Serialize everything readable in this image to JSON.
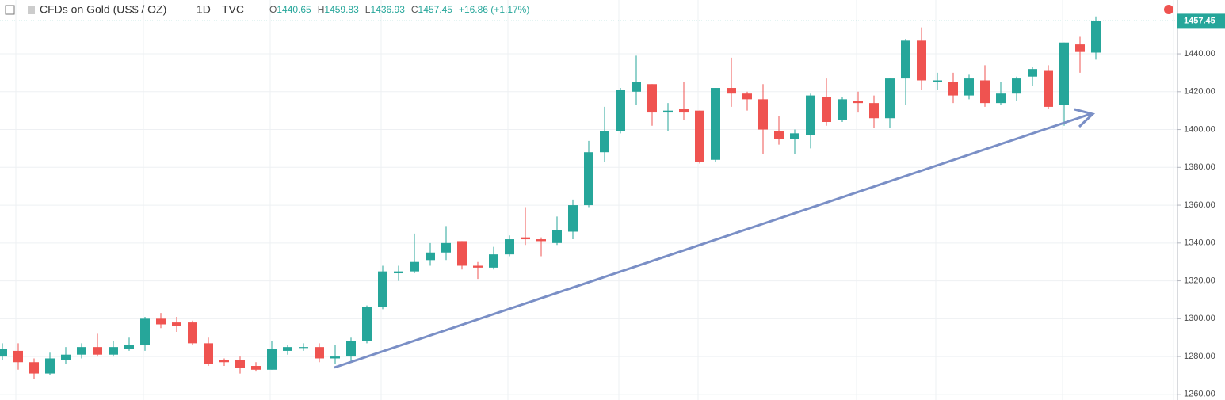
{
  "header": {
    "symbol": "CFDs on Gold (US$ / OZ)",
    "interval": "1D",
    "source": "TVC",
    "open_label": "O",
    "high_label": "H",
    "low_label": "L",
    "close_label": "C",
    "change": "+16.86 (+1.17%)"
  },
  "chart_data": {
    "type": "candlestick",
    "categories": [
      null,
      null,
      null,
      null,
      null,
      null,
      null,
      null,
      null,
      null,
      null,
      null,
      null,
      null,
      null,
      null,
      null,
      null,
      null,
      null,
      null,
      null,
      null,
      null,
      null,
      null,
      null,
      null,
      null,
      null,
      null,
      null,
      null,
      null,
      null,
      null,
      null,
      null,
      null,
      null,
      null,
      null,
      null,
      null,
      null,
      null,
      null,
      null,
      null,
      null,
      null,
      null,
      null,
      null,
      null,
      null,
      null,
      null,
      null,
      null,
      null,
      null,
      null,
      null,
      null,
      null,
      null,
      null,
      null,
      null
    ],
    "open": [
      1280,
      1283,
      1277,
      1271,
      1278,
      1281,
      1285,
      1281,
      1284,
      1286,
      1300,
      1298,
      1298,
      1287,
      1278,
      1278,
      1275,
      1273,
      1283,
      1284.5,
      1285,
      1279,
      1280,
      1288,
      1306,
      1324,
      1325,
      1331,
      1335,
      1341,
      1328,
      1327,
      1334,
      1343,
      1342,
      1340,
      1346,
      1360,
      1388,
      1399,
      1420,
      1424,
      1409,
      1411,
      1410,
      1384,
      1422,
      1419,
      1416,
      1399,
      1395,
      1397,
      1417,
      1405,
      1415,
      1414,
      1406,
      1427,
      1447,
      1425,
      1425,
      1418,
      1426,
      1414,
      1419,
      1428,
      1431,
      1413,
      1445,
      1440.65
    ],
    "high": [
      1287,
      1287,
      1279,
      1282,
      1285,
      1287,
      1292,
      1288,
      1290,
      1301,
      1303,
      1301,
      1299,
      1290,
      1279,
      1280,
      1277,
      1288,
      1286,
      1287,
      1287,
      1286,
      1290,
      1307,
      1328,
      1328,
      1345,
      1340,
      1349,
      1341,
      1330,
      1338,
      1344,
      1359,
      1343,
      1354,
      1363,
      1394,
      1412,
      1422,
      1439,
      1424,
      1414,
      1425,
      1410,
      1422,
      1438,
      1420,
      1424,
      1407,
      1400,
      1419,
      1427,
      1417,
      1420,
      1418,
      1427,
      1448,
      1454,
      1430,
      1430,
      1429,
      1434,
      1425,
      1428,
      1433,
      1434,
      1446,
      1449,
      1459.83
    ],
    "low": [
      1278,
      1273,
      1268,
      1270,
      1276,
      1279,
      1280,
      1280,
      1283,
      1283,
      1295,
      1293,
      1286,
      1275,
      1275,
      1271,
      1272,
      1273,
      1281,
      1283,
      1277,
      1276,
      1277,
      1287,
      1305,
      1320,
      1324,
      1328,
      1331,
      1326,
      1321,
      1326,
      1333,
      1339,
      1333,
      1339,
      1342,
      1359,
      1383,
      1398,
      1413,
      1402,
      1399,
      1405,
      1382,
      1383,
      1412,
      1410,
      1387,
      1392,
      1387,
      1390,
      1402,
      1404,
      1409,
      1401,
      1401,
      1413,
      1421,
      1421,
      1414,
      1416,
      1412,
      1413,
      1415,
      1423,
      1411,
      1402,
      1430,
      1436.93
    ],
    "close": [
      1284,
      1277,
      1271,
      1279,
      1281,
      1285,
      1281,
      1285,
      1286,
      1300,
      1297,
      1296,
      1287,
      1276,
      1277,
      1274,
      1273,
      1284,
      1285,
      1285,
      1279,
      1280,
      1288,
      1306,
      1325,
      1325,
      1330,
      1335,
      1340,
      1328,
      1327,
      1334,
      1342,
      1342,
      1341,
      1347,
      1360,
      1388,
      1399,
      1421,
      1425,
      1409,
      1410,
      1409,
      1383,
      1422,
      1419,
      1416,
      1400,
      1395,
      1398,
      1418,
      1404,
      1416,
      1414,
      1406,
      1427,
      1447,
      1426,
      1426,
      1418,
      1427,
      1414,
      1419,
      1427,
      1432,
      1412,
      1446,
      1441,
      1457.45
    ],
    "up_color": "#26a69a",
    "down_color": "#ef5350",
    "ylim": [
      1257,
      1468.5
    ],
    "yticks": [
      {
        "value": 1260,
        "label": "1260.00"
      },
      {
        "value": 1280,
        "label": "1280.00"
      },
      {
        "value": 1300,
        "label": "1300.00"
      },
      {
        "value": 1320,
        "label": "1320.00"
      },
      {
        "value": 1340,
        "label": "1340.00"
      },
      {
        "value": 1360,
        "label": "1360.00"
      },
      {
        "value": 1380,
        "label": "1380.00"
      },
      {
        "value": 1400,
        "label": "1400.00"
      },
      {
        "value": 1420,
        "label": "1420.00"
      },
      {
        "value": 1440,
        "label": "1440.00"
      }
    ],
    "grid": true
  }
}
